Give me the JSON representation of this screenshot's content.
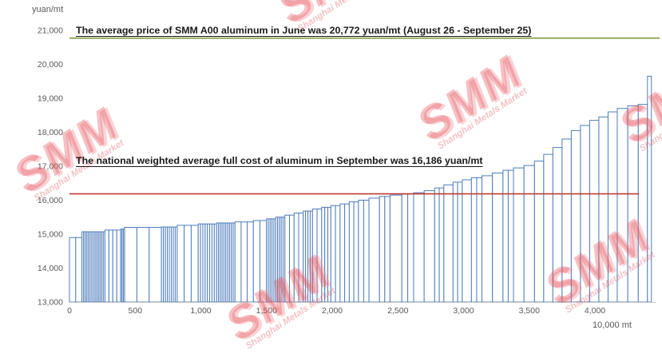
{
  "watermark": {
    "title": "SMM",
    "subtitle": "Shanghai Metals Market",
    "color": "#e23e47"
  },
  "chart_data": {
    "type": "bar",
    "subtype": "step-cost-curve",
    "title": "",
    "ylabel": "yuan/mt",
    "xlabel": "10,000 mt",
    "ylim": [
      13000,
      21000
    ],
    "xlim": [
      0,
      4450
    ],
    "grid": "off",
    "bar_stroke": "#4f7dbb",
    "bar_fill": "#ffffff",
    "y_ticks": [
      {
        "value": 13000,
        "label": "13,000"
      },
      {
        "value": 14000,
        "label": "14,000"
      },
      {
        "value": 15000,
        "label": "15,000"
      },
      {
        "value": 16000,
        "label": "16,000"
      },
      {
        "value": 17000,
        "label": "17,000"
      },
      {
        "value": 18000,
        "label": "18,000"
      },
      {
        "value": 19000,
        "label": "19,000"
      },
      {
        "value": 20000,
        "label": "20,000"
      },
      {
        "value": 21000,
        "label": "21,000"
      }
    ],
    "x_ticks": [
      {
        "value": 0,
        "label": "0"
      },
      {
        "value": 500,
        "label": "500"
      },
      {
        "value": 1000,
        "label": "1,000"
      },
      {
        "value": 1500,
        "label": "1,500"
      },
      {
        "value": 2000,
        "label": "2,000"
      },
      {
        "value": 2500,
        "label": "2,500"
      },
      {
        "value": 3000,
        "label": "3,000"
      },
      {
        "value": 3500,
        "label": "3,500"
      },
      {
        "value": 4000,
        "label": "4,000"
      }
    ],
    "reference_lines": [
      {
        "name": "smm-a00-average-price",
        "value": 20772,
        "color": "#7f9a3a",
        "label": "The average price of SMM A00 aluminum in June was 20,772 yuan/mt (August 26 - September 25)"
      },
      {
        "name": "national-weighted-average-full-cost",
        "value": 16186,
        "color": "#bf3a32",
        "label": "The national weighted average full cost of aluminum in September was 16,186 yuan/mt"
      }
    ],
    "segments_format": [
      "capacity_start_10k_mt",
      "capacity_end_10k_mt",
      "full_cost_yuan_per_mt",
      "bar_count"
    ],
    "segments": [
      [
        0,
        95,
        14900,
        2
      ],
      [
        95,
        270,
        15070,
        14
      ],
      [
        270,
        390,
        15120,
        4
      ],
      [
        390,
        420,
        15150,
        3
      ],
      [
        420,
        700,
        15200,
        3
      ],
      [
        700,
        820,
        15210,
        8
      ],
      [
        820,
        980,
        15260,
        3
      ],
      [
        980,
        1120,
        15300,
        8
      ],
      [
        1120,
        1260,
        15330,
        10
      ],
      [
        1260,
        1400,
        15360,
        3
      ],
      [
        1400,
        1500,
        15400,
        2
      ],
      [
        1500,
        1570,
        15450,
        5
      ],
      [
        1570,
        1640,
        15500,
        5
      ],
      [
        1640,
        1710,
        15560,
        2
      ],
      [
        1710,
        1780,
        15620,
        2
      ],
      [
        1780,
        1850,
        15680,
        4
      ],
      [
        1850,
        1920,
        15740,
        2
      ],
      [
        1920,
        1990,
        15790,
        3
      ],
      [
        1990,
        2060,
        15840,
        2
      ],
      [
        2060,
        2130,
        15890,
        2
      ],
      [
        2130,
        2200,
        15950,
        2
      ],
      [
        2200,
        2280,
        16000,
        2
      ],
      [
        2280,
        2360,
        16060,
        1
      ],
      [
        2360,
        2440,
        16110,
        2
      ],
      [
        2440,
        2530,
        16150,
        1
      ],
      [
        2530,
        2620,
        16180,
        2
      ],
      [
        2620,
        2700,
        16220,
        1
      ],
      [
        2700,
        2780,
        16280,
        1
      ],
      [
        2780,
        2850,
        16360,
        2
      ],
      [
        2850,
        2920,
        16450,
        1
      ],
      [
        2920,
        2990,
        16530,
        2
      ],
      [
        2990,
        3060,
        16600,
        1
      ],
      [
        3060,
        3140,
        16660,
        2
      ],
      [
        3140,
        3220,
        16720,
        1
      ],
      [
        3220,
        3300,
        16800,
        1
      ],
      [
        3300,
        3380,
        16880,
        2
      ],
      [
        3380,
        3460,
        16950,
        1
      ],
      [
        3460,
        3540,
        17020,
        1
      ],
      [
        3540,
        3610,
        17150,
        1
      ],
      [
        3610,
        3680,
        17350,
        1
      ],
      [
        3680,
        3750,
        17550,
        1
      ],
      [
        3750,
        3820,
        17800,
        1
      ],
      [
        3820,
        3890,
        18050,
        1
      ],
      [
        3890,
        3960,
        18200,
        1
      ],
      [
        3960,
        4030,
        18350,
        1
      ],
      [
        4030,
        4100,
        18450,
        1
      ],
      [
        4100,
        4170,
        18600,
        1
      ],
      [
        4170,
        4250,
        18700,
        1
      ],
      [
        4250,
        4330,
        18780,
        1
      ],
      [
        4330,
        4400,
        18820,
        1
      ],
      [
        4400,
        4430,
        19650,
        1
      ]
    ]
  }
}
